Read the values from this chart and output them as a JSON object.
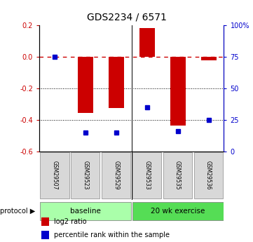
{
  "title": "GDS2234 / 6571",
  "samples": [
    "GSM29507",
    "GSM29523",
    "GSM29529",
    "GSM29533",
    "GSM29535",
    "GSM29536"
  ],
  "log2_ratio": [
    0.0,
    -0.355,
    -0.325,
    0.185,
    -0.435,
    -0.02
  ],
  "percentile_rank": [
    75,
    15,
    15,
    35,
    16,
    25
  ],
  "ylim_left": [
    -0.6,
    0.2
  ],
  "ylim_right": [
    0,
    100
  ],
  "yticks_left": [
    0.2,
    0.0,
    -0.2,
    -0.4,
    -0.6
  ],
  "yticks_right": [
    100,
    75,
    50,
    25,
    0
  ],
  "ytick_right_labels": [
    "100%",
    "75",
    "50",
    "25",
    "0"
  ],
  "bar_color": "#cc0000",
  "dot_color": "#0000cc",
  "dashed_line_color": "#cc0000",
  "bar_width": 0.5,
  "background_color": "#ffffff",
  "baseline_color": "#aaffaa",
  "exercise_color": "#55dd55",
  "legend_red_label": "log2 ratio",
  "legend_blue_label": "percentile rank within the sample",
  "protocol_label": "protocol"
}
